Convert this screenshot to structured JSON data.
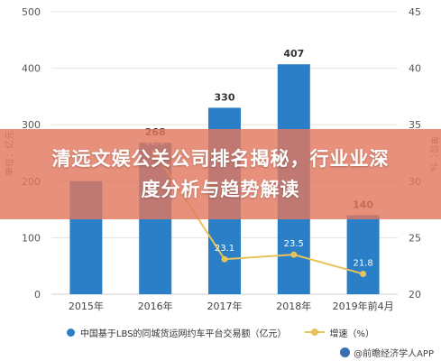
{
  "banner": {
    "line1": "清远文娱公关公司排名揭秘，行业业深",
    "line2": "度分析与趋势解读"
  },
  "chart_data": {
    "type": "bar",
    "categories": [
      "2015年",
      "2016年",
      "2017年",
      "2018年",
      "2019年前4月"
    ],
    "series": [
      {
        "name": "中国基于LBS的同城货运网约车平台交易额（亿元）",
        "type": "bar",
        "axis": "left",
        "values": [
          200,
          268,
          330,
          407,
          140
        ],
        "data_labels": [
          "",
          "268",
          "330",
          "407",
          "140"
        ],
        "color": "#2a7fc6"
      },
      {
        "name": "增速（%）",
        "type": "line",
        "axis": "right",
        "values": [
          null,
          32.5,
          23.1,
          23.5,
          21.8
        ],
        "data_labels": [
          "",
          "32.5",
          "23.1",
          "23.5",
          "21.8"
        ],
        "color": "#e8c35a"
      }
    ],
    "ylabel_left": "单位：亿元",
    "ylim_left": [
      0,
      500
    ],
    "yticks_left": [
      "0",
      "100",
      "200",
      "300",
      "400",
      "500"
    ],
    "ylabel_right": "单位：%",
    "ylim_right": [
      20,
      45
    ],
    "yticks_right": [
      "20",
      "25",
      "30",
      "35",
      "40",
      "45"
    ],
    "grid": true,
    "legend_position": "bottom"
  },
  "footer": {
    "source": "@前瞻经济学人APP"
  },
  "colors": {
    "bar": "#2a7fc6",
    "line": "#e8c35a",
    "banner": "#e2785f"
  }
}
